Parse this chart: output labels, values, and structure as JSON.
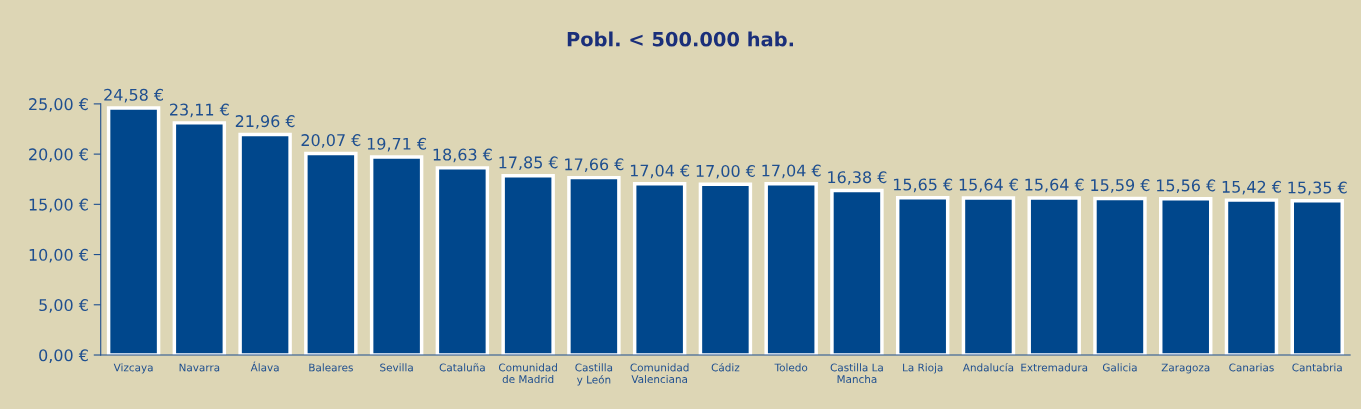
{
  "chart_data": {
    "type": "bar",
    "title": "Pobl. < 500.000 hab.",
    "categories": [
      "Vizcaya",
      "Navarra",
      "Álava",
      "Baleares",
      "Sevilla",
      "Cataluña",
      "Comunidad\nde Madrid",
      "Castilla\ny León",
      "Comunidad\nValenciana",
      "Cádiz",
      "Toledo",
      "Castilla La\nMancha",
      "La Rioja",
      "Andalucía",
      "Extremadura",
      "Galicia",
      "Zaragoza",
      "Canarias",
      "Cantabria"
    ],
    "values": [
      24.58,
      23.11,
      21.96,
      20.07,
      19.71,
      18.63,
      17.85,
      17.66,
      17.04,
      17.0,
      17.04,
      16.38,
      15.65,
      15.64,
      15.64,
      15.59,
      15.56,
      15.42,
      15.35
    ],
    "value_labels": [
      "24,58 €",
      "23,11 €",
      "21,96 €",
      "20,07 €",
      "19,71 €",
      "18,63 €",
      "17,85 €",
      "17,66 €",
      "17,04 €",
      "17,00 €",
      "17,04 €",
      "16,38 €",
      "15,65 €",
      "15,64 €",
      "15,64 €",
      "15,59 €",
      "15,56 €",
      "15,42 €",
      "15,35 €"
    ],
    "color": "#00478c",
    "ylim": [
      0,
      25
    ],
    "yticks": [
      {
        "value": 0,
        "label": "0,00 €"
      },
      {
        "value": 5,
        "label": "5,00 €"
      },
      {
        "value": 10,
        "label": "10,00 €"
      },
      {
        "value": 15,
        "label": "15,00 €"
      },
      {
        "value": 20,
        "label": "20,00 €"
      },
      {
        "value": 25,
        "label": "25,00 €"
      }
    ],
    "grid": false
  }
}
